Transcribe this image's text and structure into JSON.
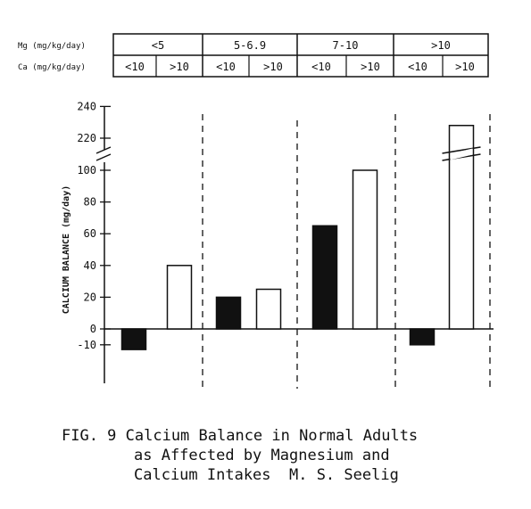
{
  "chart_data": {
    "type": "bar",
    "ylabel": "CALCIUM BALANCE (mg/day)",
    "y_axis_break": "between 100 and 220",
    "y_ticks": [
      "240",
      "220",
      "100",
      "80",
      "60",
      "40",
      "20",
      "0",
      "-10"
    ],
    "table": {
      "row1_label": "Mg (mg/kg/day)",
      "row2_label": "Ca (mg/kg/day)",
      "mg_groups": [
        "<5",
        "5-6.9",
        "7-10",
        ">10"
      ],
      "ca_levels": [
        "<10",
        ">10",
        "<10",
        ">10",
        "<10",
        ">10",
        "<10",
        ">10"
      ]
    },
    "series": [
      {
        "name": "Ca <10",
        "fill": "#111111",
        "values": [
          -13,
          20,
          65,
          -10
        ]
      },
      {
        "name": "Ca >10",
        "fill": "#ffffff",
        "values": [
          40,
          25,
          100,
          228
        ]
      }
    ]
  },
  "caption": {
    "line1": "FIG. 9 Calcium Balance in Normal Adults",
    "line2": "as Affected by Magnesium and",
    "line3": "Calcium Intakes  M. S. Seelig"
  }
}
